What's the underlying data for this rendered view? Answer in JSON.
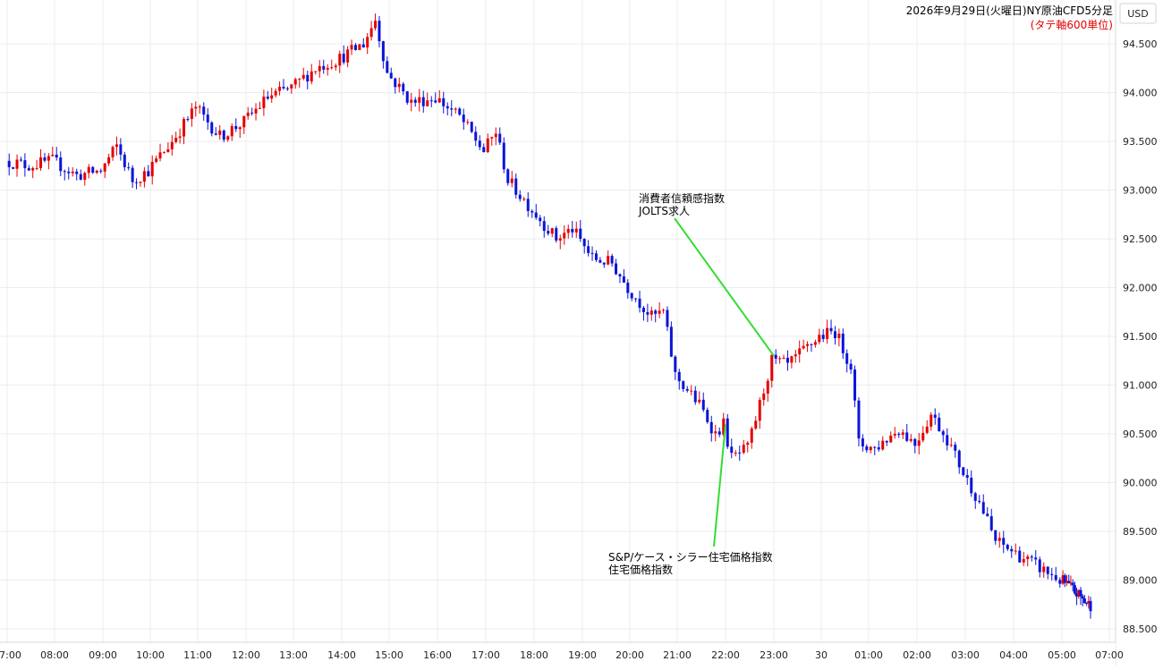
{
  "currency_badge": "USD",
  "chart_data": {
    "type": "candlestick",
    "title": "2026年9月29日(火曜日)NY原油CFD5分足",
    "subtitle": "(タテ軸600単位)",
    "ylim": [
      88.4,
      94.95
    ],
    "y_ticks": [
      "88.500",
      "89.000",
      "89.500",
      "90.000",
      "90.500",
      "91.000",
      "91.500",
      "92.000",
      "92.500",
      "93.000",
      "93.500",
      "94.000",
      "94.500"
    ],
    "x_ticks": [
      "07:00",
      "08:00",
      "09:00",
      "10:00",
      "11:00",
      "12:00",
      "13:00",
      "14:00",
      "15:00",
      "16:00",
      "17:00",
      "18:00",
      "19:00",
      "20:00",
      "21:00",
      "22:00",
      "23:00",
      "30",
      "01:00",
      "02:00",
      "03:00",
      "04:00",
      "05:00",
      "07:00"
    ],
    "grid": true,
    "colors": {
      "up": "#e60000",
      "down": "#0a14d8",
      "annotation_line": "#33dd33",
      "grid": "#e9edf2",
      "axis_text": "#222222",
      "unit_text": "#e60000"
    },
    "price_path": [
      [
        "07:00",
        93.3
      ],
      [
        "07:30",
        93.25
      ],
      [
        "08:00",
        93.3
      ],
      [
        "08:30",
        93.15
      ],
      [
        "09:00",
        93.2
      ],
      [
        "09:20",
        93.45
      ],
      [
        "09:40",
        93.1
      ],
      [
        "10:00",
        93.2
      ],
      [
        "10:30",
        93.5
      ],
      [
        "11:00",
        93.85
      ],
      [
        "11:30",
        93.55
      ],
      [
        "12:00",
        93.7
      ],
      [
        "12:30",
        93.95
      ],
      [
        "13:00",
        94.05
      ],
      [
        "13:30",
        94.25
      ],
      [
        "14:00",
        94.35
      ],
      [
        "14:30",
        94.5
      ],
      [
        "14:45",
        94.75
      ],
      [
        "15:00",
        94.2
      ],
      [
        "15:30",
        93.9
      ],
      [
        "16:00",
        93.95
      ],
      [
        "16:30",
        93.75
      ],
      [
        "17:00",
        93.4
      ],
      [
        "17:15",
        93.6
      ],
      [
        "17:30",
        93.1
      ],
      [
        "18:00",
        92.8
      ],
      [
        "18:30",
        92.5
      ],
      [
        "18:50",
        92.6
      ],
      [
        "19:15",
        92.3
      ],
      [
        "19:40",
        92.25
      ],
      [
        "20:00",
        92.0
      ],
      [
        "20:30",
        91.7
      ],
      [
        "20:45",
        91.75
      ],
      [
        "21:00",
        91.1
      ],
      [
        "21:30",
        90.8
      ],
      [
        "21:50",
        90.5
      ],
      [
        "22:00",
        90.6
      ],
      [
        "22:10",
        90.25
      ],
      [
        "22:30",
        90.35
      ],
      [
        "22:45",
        90.8
      ],
      [
        "23:00",
        91.25
      ],
      [
        "23:20",
        91.2
      ],
      [
        "23:40",
        91.35
      ],
      [
        "00:00",
        91.5
      ],
      [
        "00:20",
        91.55
      ],
      [
        "00:40",
        91.2
      ],
      [
        "00:50",
        90.4
      ],
      [
        "01:10",
        90.35
      ],
      [
        "01:40",
        90.55
      ],
      [
        "02:00",
        90.4
      ],
      [
        "02:20",
        90.7
      ],
      [
        "02:40",
        90.45
      ],
      [
        "03:00",
        90.1
      ],
      [
        "03:20",
        89.8
      ],
      [
        "03:40",
        89.4
      ],
      [
        "04:00",
        89.3
      ],
      [
        "04:40",
        89.1
      ],
      [
        "05:00",
        89.0
      ],
      [
        "05:30",
        88.9
      ],
      [
        "06:10",
        88.75
      ]
    ],
    "annotations": [
      {
        "lines": [
          "消費者信頼感指数",
          "JOLTS求人"
        ],
        "time": "23:00",
        "price": 91.3
      },
      {
        "lines": [
          "S&P/ケース・シラー住宅価格指数",
          "住宅価格指数"
        ],
        "time": "22:00",
        "price": 90.6
      }
    ]
  }
}
